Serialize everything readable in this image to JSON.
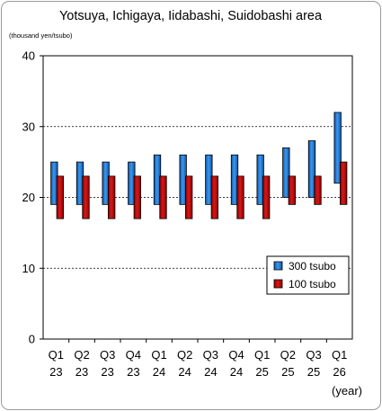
{
  "chart_data": {
    "type": "bar",
    "chart_style": "floating range bars (min-max)",
    "title": "Yotsuya, Ichigaya, Iidabashi, Suidobashi area",
    "unit_label": "(thousand yen/tsubo)",
    "xlabel": "(year)",
    "ylabel": "",
    "ylim": [
      0,
      40
    ],
    "yticks": [
      0,
      10,
      20,
      30,
      40
    ],
    "grid": true,
    "legend_position": "bottom-right",
    "categories": [
      {
        "quarter": "Q1",
        "year": "23"
      },
      {
        "quarter": "Q2",
        "year": "23"
      },
      {
        "quarter": "Q3",
        "year": "23"
      },
      {
        "quarter": "Q4",
        "year": "23"
      },
      {
        "quarter": "Q1",
        "year": "24"
      },
      {
        "quarter": "Q2",
        "year": "24"
      },
      {
        "quarter": "Q3",
        "year": "24"
      },
      {
        "quarter": "Q4",
        "year": "24"
      },
      {
        "quarter": "Q1",
        "year": "25"
      },
      {
        "quarter": "Q2",
        "year": "25"
      },
      {
        "quarter": "Q3",
        "year": "25"
      },
      {
        "quarter": "Q1",
        "year": "26"
      }
    ],
    "series": [
      {
        "name": "300 tsubo",
        "color": "#1874cd",
        "ranges": [
          [
            19,
            25
          ],
          [
            19,
            25
          ],
          [
            19,
            25
          ],
          [
            19,
            25
          ],
          [
            19,
            26
          ],
          [
            19,
            26
          ],
          [
            19,
            26
          ],
          [
            19,
            26
          ],
          [
            19,
            26
          ],
          [
            20,
            27
          ],
          [
            20,
            28
          ],
          [
            22,
            32
          ]
        ]
      },
      {
        "name": "100 tsubo",
        "color": "#c00000",
        "ranges": [
          [
            17,
            23
          ],
          [
            17,
            23
          ],
          [
            17,
            23
          ],
          [
            17,
            23
          ],
          [
            17,
            23
          ],
          [
            17,
            23
          ],
          [
            17,
            23
          ],
          [
            17,
            23
          ],
          [
            17,
            23
          ],
          [
            19,
            23
          ],
          [
            19,
            23
          ],
          [
            19,
            25
          ]
        ]
      }
    ]
  }
}
